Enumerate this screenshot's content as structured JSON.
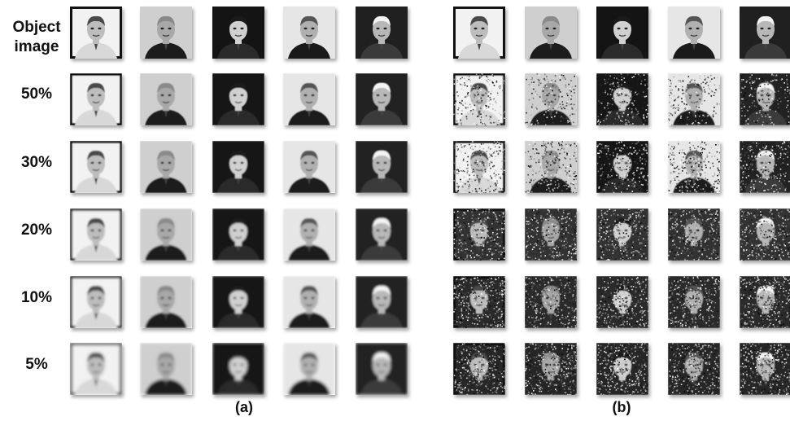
{
  "row_labels": {
    "object_line1": "Object",
    "object_line2": "image",
    "r50": "50%",
    "r30": "30%",
    "r20": "20%",
    "r10": "10%",
    "r5": "5%"
  },
  "panel_labels": {
    "a": "(a)",
    "b": "(b)"
  },
  "rows": [
    "object",
    "50%",
    "30%",
    "20%",
    "10%",
    "5%"
  ],
  "subjects": [
    {
      "shirt": "#d8d8d8",
      "bg": "#f2f2f2",
      "hair": "#4a4a4a",
      "skin": "#bdbdbd",
      "frame": true
    },
    {
      "shirt": "#1c1c1c",
      "bg": "#cfcfcf",
      "hair": "#8a8a8a",
      "skin": "#a8a8a8",
      "frame": false
    },
    {
      "shirt": "#2a2a2a",
      "bg": "#141414",
      "hair": "#1a1a1a",
      "skin": "#d0d0d0",
      "frame": false
    },
    {
      "shirt": "#1a1a1a",
      "bg": "#e6e6e6",
      "hair": "#555555",
      "skin": "#b0b0b0",
      "frame": false
    },
    {
      "shirt": "#3a3a3a",
      "bg": "#202020",
      "hair": "#f4f4f4",
      "skin": "#b8b8b8",
      "frame": false
    }
  ]
}
